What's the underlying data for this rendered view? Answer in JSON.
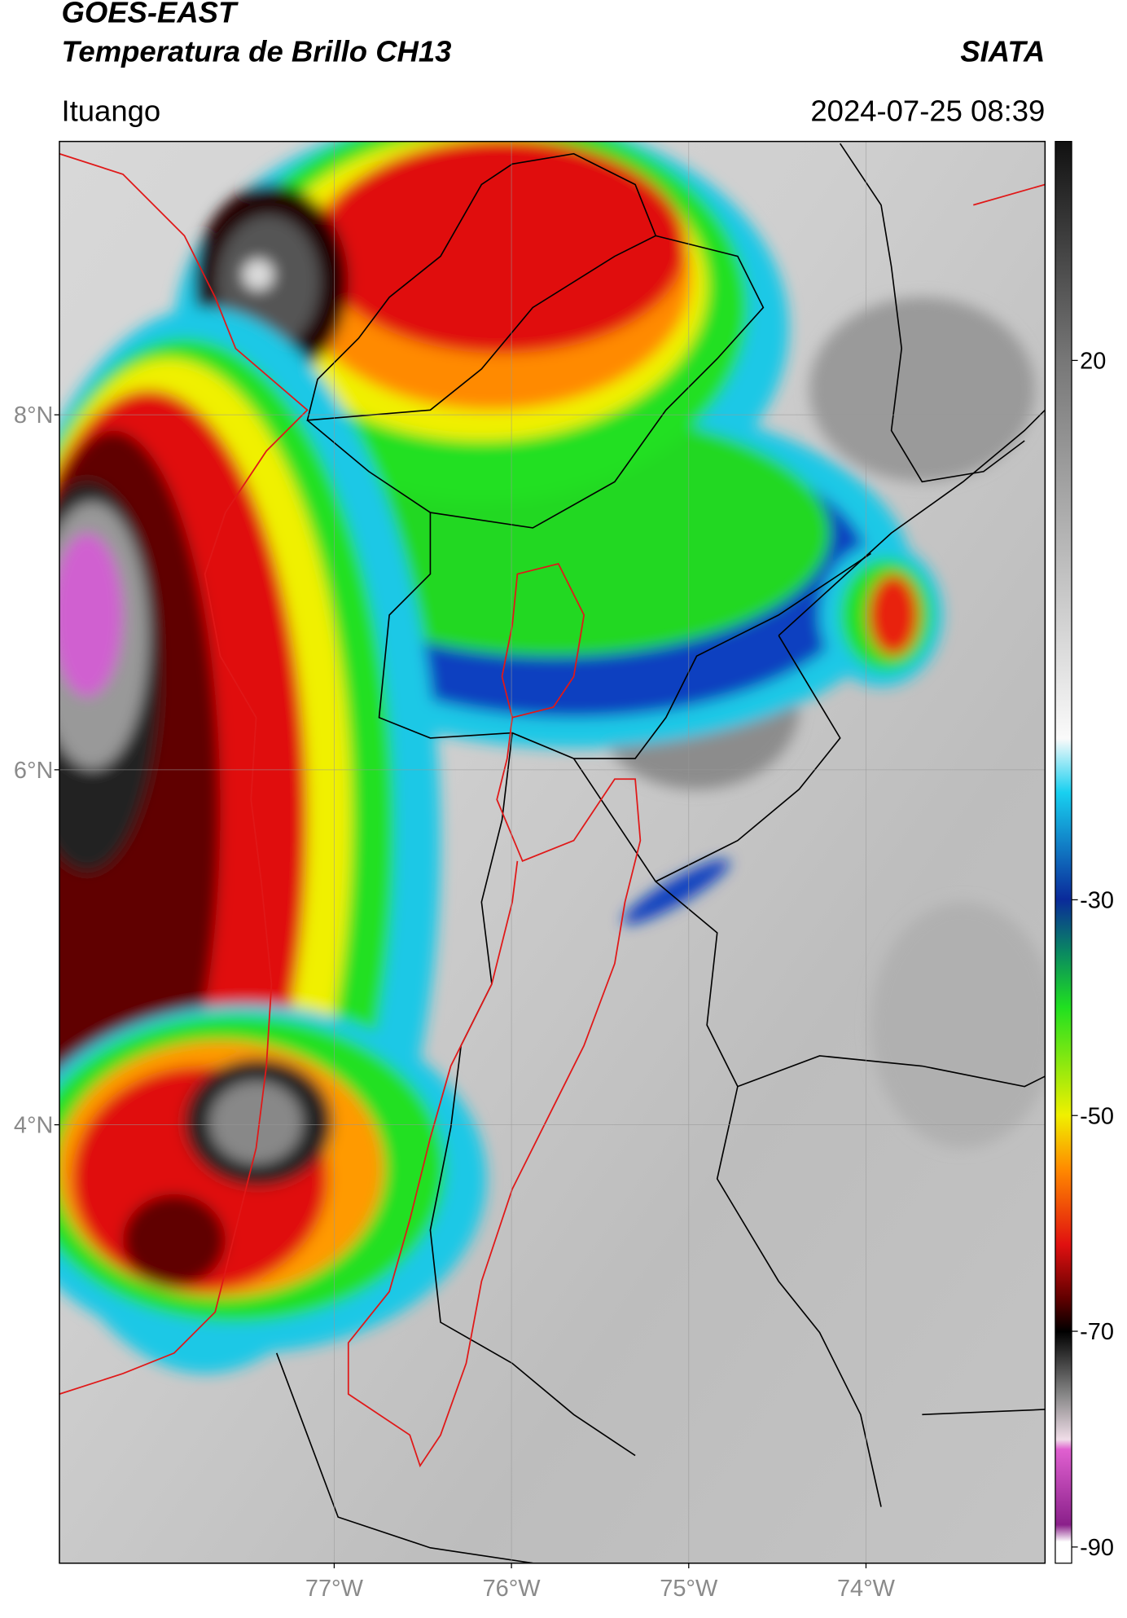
{
  "header": {
    "title": "GOES-EAST",
    "subtitle": "Temperatura de Brillo CH13",
    "agency": "SIATA",
    "location": "Ituango",
    "datetime": "2024-07-25 08:39"
  },
  "map": {
    "latlim": [
      1.53,
      9.54
    ],
    "lonlim": [
      -78.55,
      -72.99
    ],
    "latticks": [
      {
        "value": 8,
        "label": "8°N"
      },
      {
        "value": 6,
        "label": "6°N"
      },
      {
        "value": 4,
        "label": "4°N"
      }
    ],
    "lonticks": [
      {
        "value": -77,
        "label": "77°W"
      },
      {
        "value": -76,
        "label": "76°W"
      },
      {
        "value": -75,
        "label": "75°W"
      },
      {
        "value": -74,
        "label": "74°W"
      }
    ],
    "grid": true
  },
  "colorbar": {
    "lim": [
      -91.5,
      40.3
    ],
    "ticks": [
      20,
      -30,
      -50,
      -70,
      -90
    ]
  }
}
